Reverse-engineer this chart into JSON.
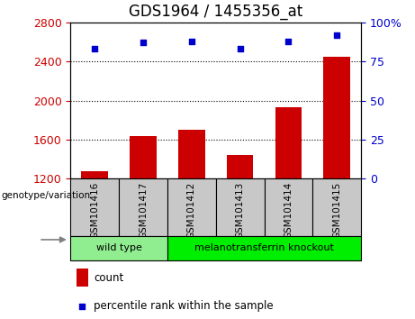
{
  "title": "GDS1964 / 1455356_at",
  "samples": [
    "GSM101416",
    "GSM101417",
    "GSM101412",
    "GSM101413",
    "GSM101414",
    "GSM101415"
  ],
  "counts": [
    1280,
    1640,
    1700,
    1440,
    1930,
    2450
  ],
  "percentiles": [
    83,
    87,
    88,
    83,
    88,
    92
  ],
  "ylim_left": [
    1200,
    2800
  ],
  "ylim_right": [
    0,
    100
  ],
  "yticks_left": [
    1200,
    1600,
    2000,
    2400,
    2800
  ],
  "yticks_right": [
    0,
    25,
    50,
    75,
    100
  ],
  "bar_color": "#cc0000",
  "scatter_color": "#0000cc",
  "bar_bottom": 1200,
  "groups": [
    {
      "label": "wild type",
      "start": 0,
      "end": 1,
      "color": "#90ee90"
    },
    {
      "label": "melanotransferrin knockout",
      "start": 2,
      "end": 5,
      "color": "#00ee00"
    }
  ],
  "group_label": "genotype/variation",
  "legend_count_label": "count",
  "legend_percentile_label": "percentile rank within the sample",
  "grid_color": "black",
  "background_color": "white",
  "tick_label_color_left": "#cc0000",
  "tick_label_color_right": "#0000cc",
  "title_fontsize": 12,
  "tick_fontsize": 9,
  "sample_box_color": "#c8c8c8",
  "arrow_color": "#808080"
}
